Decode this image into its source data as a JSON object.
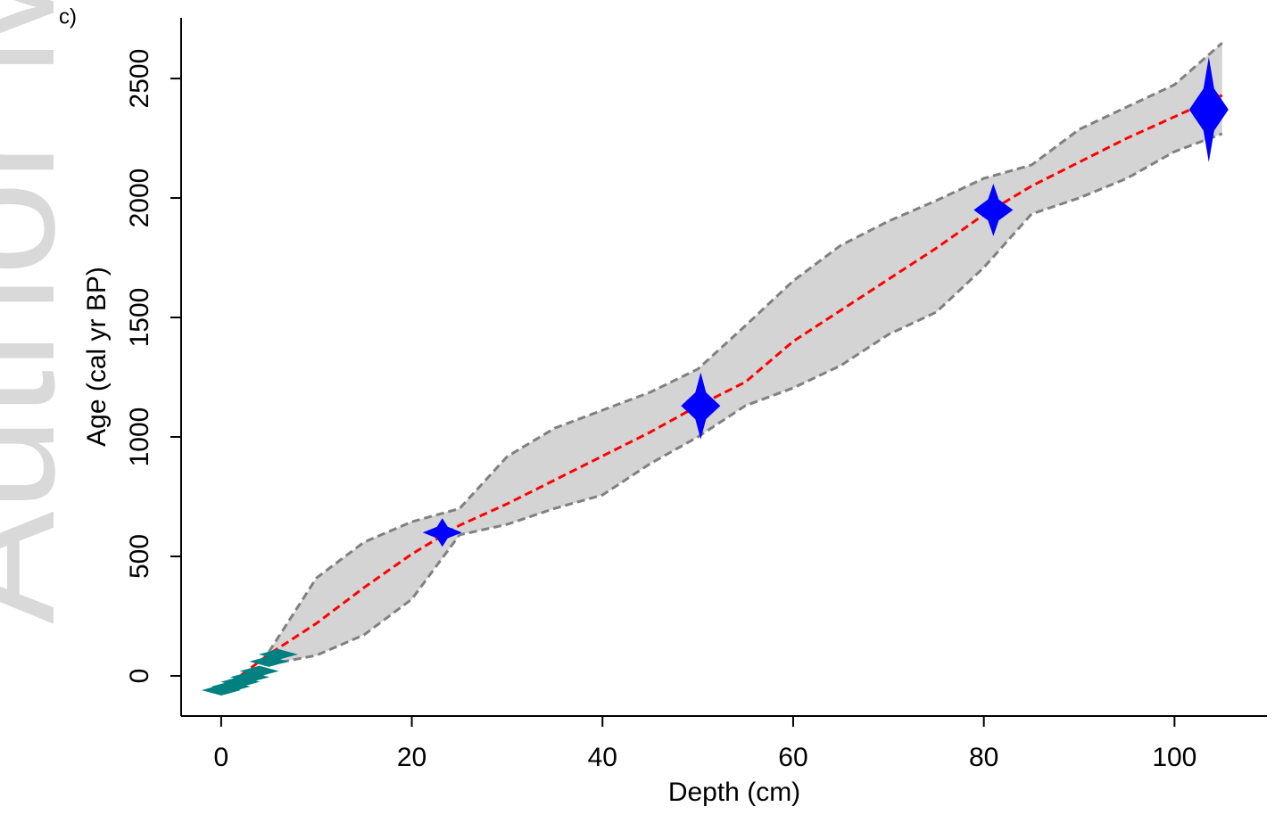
{
  "chart_data": {
    "type": "line",
    "panel_label": "c)",
    "watermark": "Author Ma",
    "x_label": "Depth (cm)",
    "y_label": "Age (cal yr BP)",
    "xlim": [
      -4.2,
      109.7
    ],
    "ylim": [
      -168,
      2754
    ],
    "xticks": [
      0,
      20,
      40,
      60,
      80,
      100
    ],
    "yticks": [
      0,
      500,
      1000,
      1500,
      2000,
      2500
    ],
    "x": [
      0,
      5,
      10,
      15,
      20,
      25,
      30,
      35,
      40,
      45,
      50,
      55,
      60,
      65,
      70,
      75,
      80,
      85,
      90,
      95,
      100,
      105
    ],
    "band_color": "#b0b0b0",
    "series": [
      {
        "color": "#ff0000",
        "dash": true,
        "values": [
          -60,
          90,
          220,
          370,
          510,
          630,
          720,
          820,
          920,
          1020,
          1130,
          1230,
          1400,
          1530,
          1660,
          1790,
          1930,
          2050,
          2150,
          2250,
          2340,
          2430
        ]
      },
      {
        "color": "#808080",
        "dash": true,
        "values": [
          null,
          100,
          410,
          560,
          645,
          700,
          918,
          1037,
          1112,
          1187,
          1284,
          1466,
          1653,
          1802,
          1903,
          1989,
          2082,
          2138,
          2287,
          2381,
          2474,
          2649
        ]
      },
      {
        "color": "#808080",
        "dash": true,
        "values": [
          null,
          48,
          86,
          172,
          321,
          590,
          634,
          701,
          757,
          888,
          1000,
          1131,
          1205,
          1299,
          1429,
          1522,
          1709,
          1933,
          2000,
          2082,
          2194,
          2269
        ]
      }
    ],
    "dates": {
      "color": "#0000ff",
      "depths": [
        23.2,
        50.3,
        81,
        103.6
      ],
      "ages": [
        600,
        1130,
        1950,
        2370
      ],
      "errors": [
        60,
        140,
        110,
        220
      ]
    },
    "lead_dates": {
      "color": "#008080",
      "depths": [
        0,
        1,
        2,
        3,
        4,
        5,
        6
      ],
      "ages": [
        -60,
        -45,
        -25,
        -5,
        20,
        60,
        90
      ]
    }
  }
}
